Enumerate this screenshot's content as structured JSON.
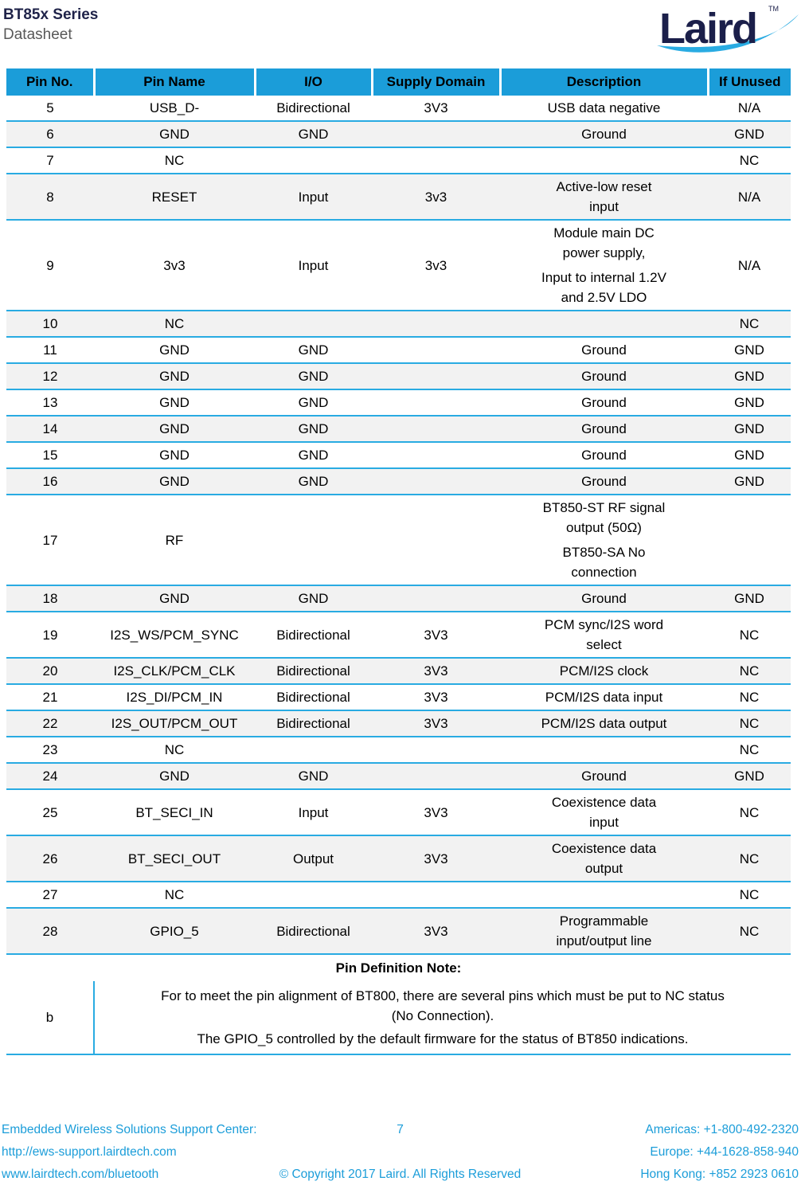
{
  "page": {
    "title": "BT85x Series",
    "subtitle": "Datasheet"
  },
  "logo": {
    "text": "Laird",
    "tm": "TM"
  },
  "colors": {
    "table_header_bg": "#1B9DD9",
    "row_separator_blue": "#29ABE2",
    "alt_row_gray": "#F2F2F2",
    "navy": "#1F2349",
    "subtitle_gray": "#595959",
    "footer_text_blue": "#1B9DD9",
    "swoosh_blue": "#29ABE2"
  },
  "table": {
    "columns": [
      "Pin No.",
      "Pin Name",
      "I/O",
      "Supply Domain",
      "Description",
      "If Unused"
    ],
    "rows": [
      {
        "no": "5",
        "name": "USB_D-",
        "io": "Bidirectional",
        "supply": "3V3",
        "desc": [
          [
            "USB data negative"
          ]
        ],
        "unused": "N/A"
      },
      {
        "no": "6",
        "name": "GND",
        "io": "GND",
        "supply": "",
        "desc": [
          [
            "Ground"
          ]
        ],
        "unused": "GND"
      },
      {
        "no": "7",
        "name": "NC",
        "io": "",
        "supply": "",
        "desc": [],
        "unused": "NC"
      },
      {
        "no": "8",
        "name": "RESET",
        "io": "Input",
        "supply": "3v3",
        "desc": [
          [
            "Active-low reset",
            "input"
          ]
        ],
        "unused": "N/A"
      },
      {
        "no": "9",
        "name": "3v3",
        "io": "Input",
        "supply": "3v3",
        "desc": [
          [
            "Module main DC",
            "power supply,"
          ],
          [
            "Input to internal 1.2V",
            "and 2.5V LDO"
          ]
        ],
        "unused": "N/A"
      },
      {
        "no": "10",
        "name": "NC",
        "io": "",
        "supply": "",
        "desc": [],
        "unused": "NC"
      },
      {
        "no": "11",
        "name": "GND",
        "io": "GND",
        "supply": "",
        "desc": [
          [
            "Ground"
          ]
        ],
        "unused": "GND"
      },
      {
        "no": "12",
        "name": "GND",
        "io": "GND",
        "supply": "",
        "desc": [
          [
            "Ground"
          ]
        ],
        "unused": "GND"
      },
      {
        "no": "13",
        "name": "GND",
        "io": "GND",
        "supply": "",
        "desc": [
          [
            "Ground"
          ]
        ],
        "unused": "GND"
      },
      {
        "no": "14",
        "name": "GND",
        "io": "GND",
        "supply": "",
        "desc": [
          [
            "Ground"
          ]
        ],
        "unused": "GND"
      },
      {
        "no": "15",
        "name": "GND",
        "io": "GND",
        "supply": "",
        "desc": [
          [
            "Ground"
          ]
        ],
        "unused": "GND"
      },
      {
        "no": "16",
        "name": "GND",
        "io": "GND",
        "supply": "",
        "desc": [
          [
            "Ground"
          ]
        ],
        "unused": "GND"
      },
      {
        "no": "17",
        "name": "RF",
        "io": "",
        "supply": "",
        "desc": [
          [
            "BT850-ST RF signal",
            "output (50Ω)"
          ],
          [
            "BT850-SA No",
            "connection"
          ]
        ],
        "unused": ""
      },
      {
        "no": "18",
        "name": "GND",
        "io": "GND",
        "supply": "",
        "desc": [
          [
            "Ground"
          ]
        ],
        "unused": "GND"
      },
      {
        "no": "19",
        "name": "I2S_WS/PCM_SYNC",
        "io": "Bidirectional",
        "supply": "3V3",
        "desc": [
          [
            "PCM sync/I2S word",
            "select"
          ]
        ],
        "unused": "NC"
      },
      {
        "no": "20",
        "name": "I2S_CLK/PCM_CLK",
        "io": "Bidirectional",
        "supply": "3V3",
        "desc": [
          [
            "PCM/I2S clock"
          ]
        ],
        "unused": "NC"
      },
      {
        "no": "21",
        "name": "I2S_DI/PCM_IN",
        "io": "Bidirectional",
        "supply": "3V3",
        "desc": [
          [
            "PCM/I2S data input"
          ]
        ],
        "unused": "NC"
      },
      {
        "no": "22",
        "name": "I2S_OUT/PCM_OUT",
        "io": "Bidirectional",
        "supply": "3V3",
        "desc": [
          [
            "PCM/I2S data output"
          ]
        ],
        "unused": "NC"
      },
      {
        "no": "23",
        "name": "NC",
        "io": "",
        "supply": "",
        "desc": [],
        "unused": "NC"
      },
      {
        "no": "24",
        "name": "GND",
        "io": "GND",
        "supply": "",
        "desc": [
          [
            "Ground"
          ]
        ],
        "unused": "GND"
      },
      {
        "no": "25",
        "name": "BT_SECI_IN",
        "io": "Input",
        "supply": "3V3",
        "desc": [
          [
            "Coexistence data",
            "input"
          ]
        ],
        "unused": "NC"
      },
      {
        "no": "26",
        "name": "BT_SECI_OUT",
        "io": "Output",
        "supply": "3V3",
        "desc": [
          [
            "Coexistence data",
            "output"
          ]
        ],
        "unused": "NC"
      },
      {
        "no": "27",
        "name": "NC",
        "io": "",
        "supply": "",
        "desc": [],
        "unused": "NC"
      },
      {
        "no": "28",
        "name": "GPIO_5",
        "io": "Bidirectional",
        "supply": "3V3",
        "desc": [
          [
            "Programmable",
            "input/output line"
          ]
        ],
        "unused": "NC"
      }
    ]
  },
  "note": {
    "title": "Pin Definition Note:",
    "label": "b",
    "paragraphs": [
      [
        "For to meet the pin alignment of BT800, there are several pins which must be put to NC status",
        "(No Connection)."
      ],
      [
        "The GPIO_5 controlled by the default firmware for the status of BT850 indications."
      ]
    ]
  },
  "footer": {
    "left_lines": [
      "Embedded Wireless Solutions Support Center:",
      "http://ews-support.lairdtech.com",
      "www.lairdtech.com/bluetooth"
    ],
    "page_number": "7",
    "copyright": "© Copyright 2017 Laird. All Rights Reserved",
    "right_lines": [
      "Americas: +1-800-492-2320",
      "Europe: +44-1628-858-940",
      "Hong Kong: +852 2923 0610"
    ]
  }
}
